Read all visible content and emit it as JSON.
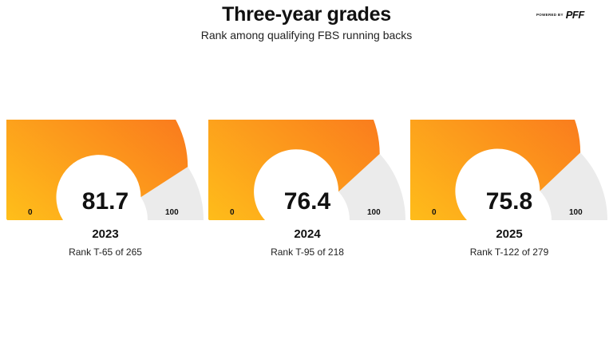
{
  "title": "Three-year grades",
  "subtitle": "Rank among qualifying FBS running backs",
  "brand": {
    "small": "POWERED BY",
    "logo": "PFF"
  },
  "colors": {
    "track": "#ebebeb",
    "fill_start": "#ffc21a",
    "fill_end": "#f96b1e"
  },
  "chart_data": [
    {
      "type": "gauge",
      "value": 81.7,
      "display": "81.7",
      "min_label": "0",
      "max_label": "100",
      "min": 0,
      "max": 100,
      "year": "2023",
      "rank": "Rank T-65 of 265"
    },
    {
      "type": "gauge",
      "value": 76.4,
      "display": "76.4",
      "min_label": "0",
      "max_label": "100",
      "min": 0,
      "max": 100,
      "year": "2024",
      "rank": "Rank T-95 of 218"
    },
    {
      "type": "gauge",
      "value": 75.8,
      "display": "75.8",
      "min_label": "0",
      "max_label": "100",
      "min": 0,
      "max": 100,
      "year": "2025",
      "rank": "Rank T-122 of 279"
    }
  ]
}
